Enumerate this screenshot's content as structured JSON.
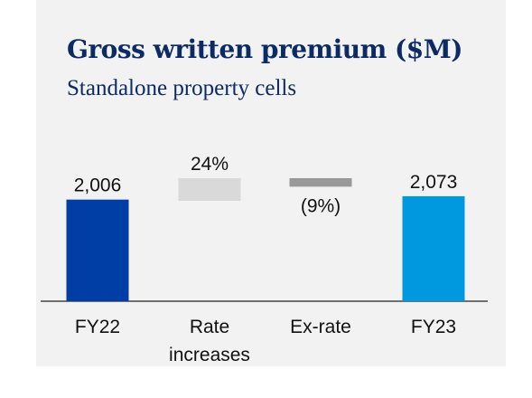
{
  "chart_data": {
    "type": "waterfall",
    "title": "Gross written premium ($M)",
    "subtitle": "Standalone property cells",
    "categories": [
      "FY22",
      "Rate increases",
      "Ex-rate",
      "FY23"
    ],
    "values": [
      2006,
      24,
      -9,
      2073
    ],
    "value_labels": [
      "2,006",
      "24%",
      "(9%)",
      "2,073"
    ],
    "colors": [
      "#003da5",
      "#d9d9d9",
      "#999999",
      "#0099e0"
    ],
    "ylim": [
      0,
      2500
    ]
  }
}
